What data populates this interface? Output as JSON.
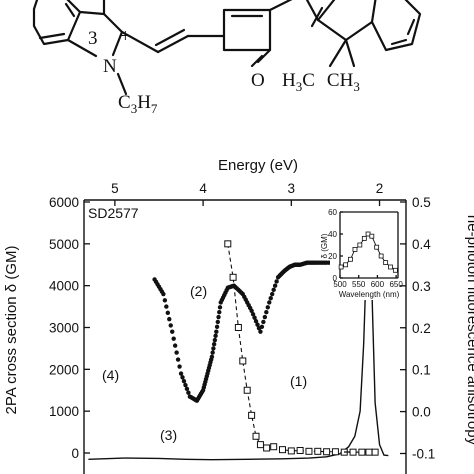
{
  "molecule": {
    "charge": "+",
    "atom_n": "N",
    "substituent": "C3H7",
    "substituent_parts": [
      "C",
      "3",
      "H",
      "7"
    ],
    "dimethyl_parts": [
      "H",
      "3",
      "C",
      "CH",
      "3"
    ],
    "oxygen": "O",
    "methyl_stub": "3"
  },
  "chart_data": {
    "type": "line",
    "sample_label": "SD2577",
    "top_axis": {
      "label": "Energy (eV)",
      "ticks": [
        "5",
        "4",
        "3",
        "2"
      ],
      "tick_values": [
        5,
        4,
        3,
        2
      ]
    },
    "left_axis": {
      "label": "2PA cross section δ (GM)",
      "ticks": [
        "6000",
        "5000",
        "4000",
        "3000",
        "2000",
        "1000",
        "0"
      ],
      "ylim": [
        -300,
        6000
      ]
    },
    "right_axis": {
      "label": "ne-photon fluorescence anisotropy",
      "ticks": [
        "0.5",
        "0.4",
        "0.3",
        "0.2",
        "0.1",
        "0.0",
        "-0.1"
      ],
      "ylim": [
        -0.1,
        0.5
      ]
    },
    "xlim_ev": [
      5.35,
      1.7
    ],
    "curve_labels": [
      "(1)",
      "(2)",
      "(3)",
      "(4)"
    ],
    "series": [
      {
        "name": "(1)",
        "style": "solid",
        "x_ev": [
          5.3,
          4.9,
          4.5,
          4.2,
          3.9,
          3.5,
          3.1,
          2.8,
          2.6,
          2.45,
          2.35,
          2.28,
          2.22,
          2.18,
          2.15,
          2.12,
          2.1,
          2.08,
          2.05,
          2.0,
          1.95,
          1.9
        ],
        "y_gm": [
          -150,
          -120,
          -130,
          -150,
          -160,
          -150,
          -140,
          -120,
          -90,
          -20,
          150,
          400,
          1000,
          2600,
          4500,
          5420,
          5100,
          3400,
          1200,
          200,
          -50,
          -60
        ]
      },
      {
        "name": "(2)",
        "style": "dots",
        "x_ev": [
          4.55,
          4.45,
          4.35,
          4.25,
          4.15,
          4.07,
          4.0,
          3.95,
          3.9,
          3.85,
          3.8,
          3.72,
          3.65,
          3.55,
          3.45,
          3.35,
          3.25,
          3.15,
          3.08,
          3.02,
          2.96,
          2.9,
          2.82,
          2.72,
          2.6,
          2.45,
          2.3,
          2.2,
          2.15
        ],
        "y_gm": [
          4150,
          3800,
          2900,
          1900,
          1350,
          1250,
          1500,
          1900,
          2300,
          2900,
          3600,
          3950,
          4000,
          3800,
          3400,
          2900,
          3600,
          4200,
          4350,
          4450,
          4500,
          4500,
          4550,
          4550,
          4550,
          4550,
          4550,
          4600,
          4580
        ]
      },
      {
        "name": "(3)",
        "style": "dashed-squares",
        "x_ev": [
          3.72,
          3.66,
          3.6,
          3.55,
          3.5,
          3.45,
          3.4,
          3.35,
          3.28,
          3.2,
          3.1,
          3.0,
          2.9,
          2.8,
          2.7,
          2.6,
          2.5,
          2.4,
          2.3,
          2.2,
          2.12,
          2.05
        ],
        "y_gm": [
          5000,
          4200,
          3000,
          2200,
          1500,
          900,
          400,
          200,
          120,
          150,
          80,
          50,
          60,
          40,
          40,
          30,
          30,
          20,
          20,
          20,
          20,
          20
        ]
      }
    ],
    "inset": {
      "xlabel": "Wavelength (nm)",
      "ylabel": "δ (GM)",
      "xticks": [
        "500",
        "550",
        "600",
        "650"
      ],
      "yticks": [
        "0",
        "20",
        "40",
        "60"
      ],
      "xlim": [
        500,
        655
      ],
      "ylim": [
        0,
        60
      ],
      "x": [
        503,
        515,
        528,
        540,
        553,
        565,
        575,
        585,
        598,
        610,
        622,
        635,
        648
      ],
      "y": [
        10,
        12,
        17,
        26,
        30,
        36,
        40,
        38,
        28,
        20,
        14,
        10,
        7
      ]
    }
  }
}
